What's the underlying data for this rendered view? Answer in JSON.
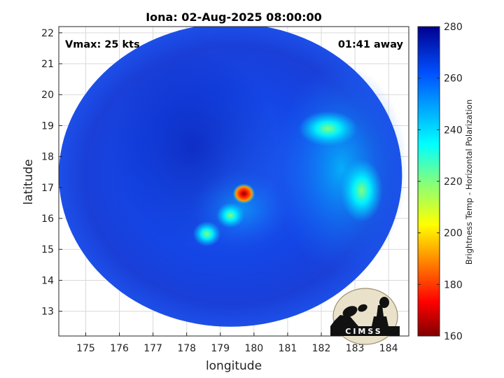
{
  "chart_data": {
    "type": "heatmap",
    "title": "Iona: 02-Aug-2025 08:00:00",
    "xlabel": "longitude",
    "ylabel": "latitude",
    "xlim": [
      174.2,
      184.6
    ],
    "ylim": [
      12.2,
      22.2
    ],
    "x_ticks": [
      "175",
      "176",
      "177",
      "178",
      "179",
      "180",
      "181",
      "182",
      "183",
      "184"
    ],
    "y_ticks": [
      "13",
      "14",
      "15",
      "16",
      "17",
      "18",
      "19",
      "20",
      "21",
      "22"
    ],
    "grid": true,
    "annotations": {
      "vmax": "Vmax: 25 kts",
      "time_offset": "01:41 away"
    },
    "colorbar": {
      "label": "Brightness Temp - Horizontal Polarization",
      "range": [
        160,
        280
      ],
      "ticks": [
        "160",
        "180",
        "200",
        "220",
        "240",
        "260",
        "280"
      ],
      "colormap": "jet"
    },
    "swath": {
      "center": [
        179.3,
        17.4
      ],
      "radius_lon": 5.1,
      "radius_lat": 4.9
    },
    "features": [
      {
        "lon": 179.7,
        "lat": 16.8,
        "tb": 175
      },
      {
        "lon": 182.2,
        "lat": 18.9,
        "tb": 238
      },
      {
        "lon": 183.2,
        "lat": 16.9,
        "tb": 226
      },
      {
        "lon": 179.3,
        "lat": 16.1,
        "tb": 232
      },
      {
        "lon": 178.6,
        "lat": 15.5,
        "tb": 238
      }
    ]
  },
  "logo": {
    "text": "CIMSS"
  }
}
